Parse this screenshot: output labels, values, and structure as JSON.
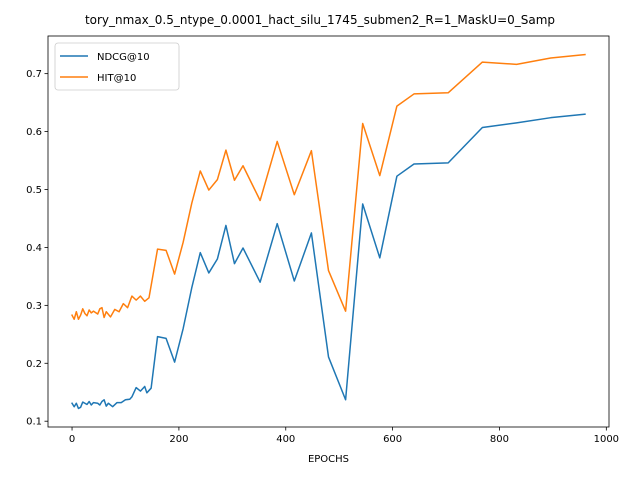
{
  "chart_data": {
    "type": "line",
    "title": "tory_nmax_0.5_ntype_0.0001_hact_silu_1745_submen2_R=1_MaskU=0_Samp",
    "xlabel": "EPOCHS",
    "ylabel": "",
    "xlim": [
      -45,
      1005
    ],
    "ylim": [
      0.09,
      0.765
    ],
    "xticks": [
      0,
      200,
      400,
      600,
      800,
      1000
    ],
    "yticks": [
      0.1,
      0.2,
      0.3,
      0.4,
      0.5,
      0.6,
      0.7
    ],
    "xtick_labels": [
      "0",
      "200",
      "400",
      "600",
      "800",
      "1000"
    ],
    "ytick_labels": [
      "0.1",
      "0.2",
      "0.3",
      "0.4",
      "0.5",
      "0.6",
      "0.7"
    ],
    "legend_position": "upper-left",
    "grid": false,
    "series": [
      {
        "name": "NDCG@10",
        "color": "#1f77b4",
        "points": [
          [
            0,
            0.131
          ],
          [
            4,
            0.125
          ],
          [
            8,
            0.131
          ],
          [
            12,
            0.122
          ],
          [
            16,
            0.124
          ],
          [
            20,
            0.133
          ],
          [
            24,
            0.131
          ],
          [
            28,
            0.129
          ],
          [
            32,
            0.134
          ],
          [
            36,
            0.128
          ],
          [
            40,
            0.132
          ],
          [
            48,
            0.131
          ],
          [
            52,
            0.128
          ],
          [
            56,
            0.134
          ],
          [
            60,
            0.137
          ],
          [
            64,
            0.126
          ],
          [
            68,
            0.131
          ],
          [
            76,
            0.125
          ],
          [
            84,
            0.132
          ],
          [
            92,
            0.132
          ],
          [
            100,
            0.137
          ],
          [
            108,
            0.138
          ],
          [
            112,
            0.142
          ],
          [
            120,
            0.158
          ],
          [
            128,
            0.152
          ],
          [
            136,
            0.16
          ],
          [
            140,
            0.149
          ],
          [
            148,
            0.157
          ],
          [
            160,
            0.246
          ],
          [
            176,
            0.243
          ],
          [
            192,
            0.202
          ],
          [
            208,
            0.26
          ],
          [
            224,
            0.33
          ],
          [
            240,
            0.391
          ],
          [
            256,
            0.356
          ],
          [
            272,
            0.38
          ],
          [
            288,
            0.438
          ],
          [
            304,
            0.372
          ],
          [
            320,
            0.399
          ],
          [
            352,
            0.34
          ],
          [
            384,
            0.441
          ],
          [
            416,
            0.342
          ],
          [
            448,
            0.425
          ],
          [
            480,
            0.211
          ],
          [
            512,
            0.137
          ],
          [
            544,
            0.475
          ],
          [
            576,
            0.382
          ],
          [
            608,
            0.523
          ],
          [
            640,
            0.544
          ],
          [
            704,
            0.546
          ],
          [
            768,
            0.607
          ],
          [
            832,
            0.615
          ],
          [
            896,
            0.624
          ],
          [
            960,
            0.63
          ]
        ]
      },
      {
        "name": "HIT@10",
        "color": "#ff7f0e",
        "points": [
          [
            0,
            0.283
          ],
          [
            4,
            0.276
          ],
          [
            8,
            0.289
          ],
          [
            12,
            0.276
          ],
          [
            16,
            0.283
          ],
          [
            20,
            0.294
          ],
          [
            24,
            0.286
          ],
          [
            28,
            0.282
          ],
          [
            32,
            0.292
          ],
          [
            36,
            0.287
          ],
          [
            40,
            0.29
          ],
          [
            48,
            0.285
          ],
          [
            52,
            0.294
          ],
          [
            56,
            0.296
          ],
          [
            60,
            0.279
          ],
          [
            64,
            0.289
          ],
          [
            72,
            0.28
          ],
          [
            80,
            0.293
          ],
          [
            88,
            0.289
          ],
          [
            96,
            0.303
          ],
          [
            104,
            0.296
          ],
          [
            112,
            0.316
          ],
          [
            120,
            0.309
          ],
          [
            128,
            0.316
          ],
          [
            136,
            0.307
          ],
          [
            144,
            0.313
          ],
          [
            160,
            0.397
          ],
          [
            176,
            0.395
          ],
          [
            192,
            0.354
          ],
          [
            208,
            0.409
          ],
          [
            224,
            0.476
          ],
          [
            240,
            0.532
          ],
          [
            256,
            0.499
          ],
          [
            272,
            0.517
          ],
          [
            288,
            0.568
          ],
          [
            304,
            0.516
          ],
          [
            320,
            0.541
          ],
          [
            352,
            0.481
          ],
          [
            384,
            0.583
          ],
          [
            416,
            0.491
          ],
          [
            448,
            0.567
          ],
          [
            480,
            0.36
          ],
          [
            512,
            0.29
          ],
          [
            544,
            0.614
          ],
          [
            576,
            0.524
          ],
          [
            608,
            0.644
          ],
          [
            640,
            0.665
          ],
          [
            704,
            0.667
          ],
          [
            768,
            0.72
          ],
          [
            832,
            0.716
          ],
          [
            896,
            0.727
          ],
          [
            960,
            0.733
          ]
        ]
      }
    ]
  }
}
